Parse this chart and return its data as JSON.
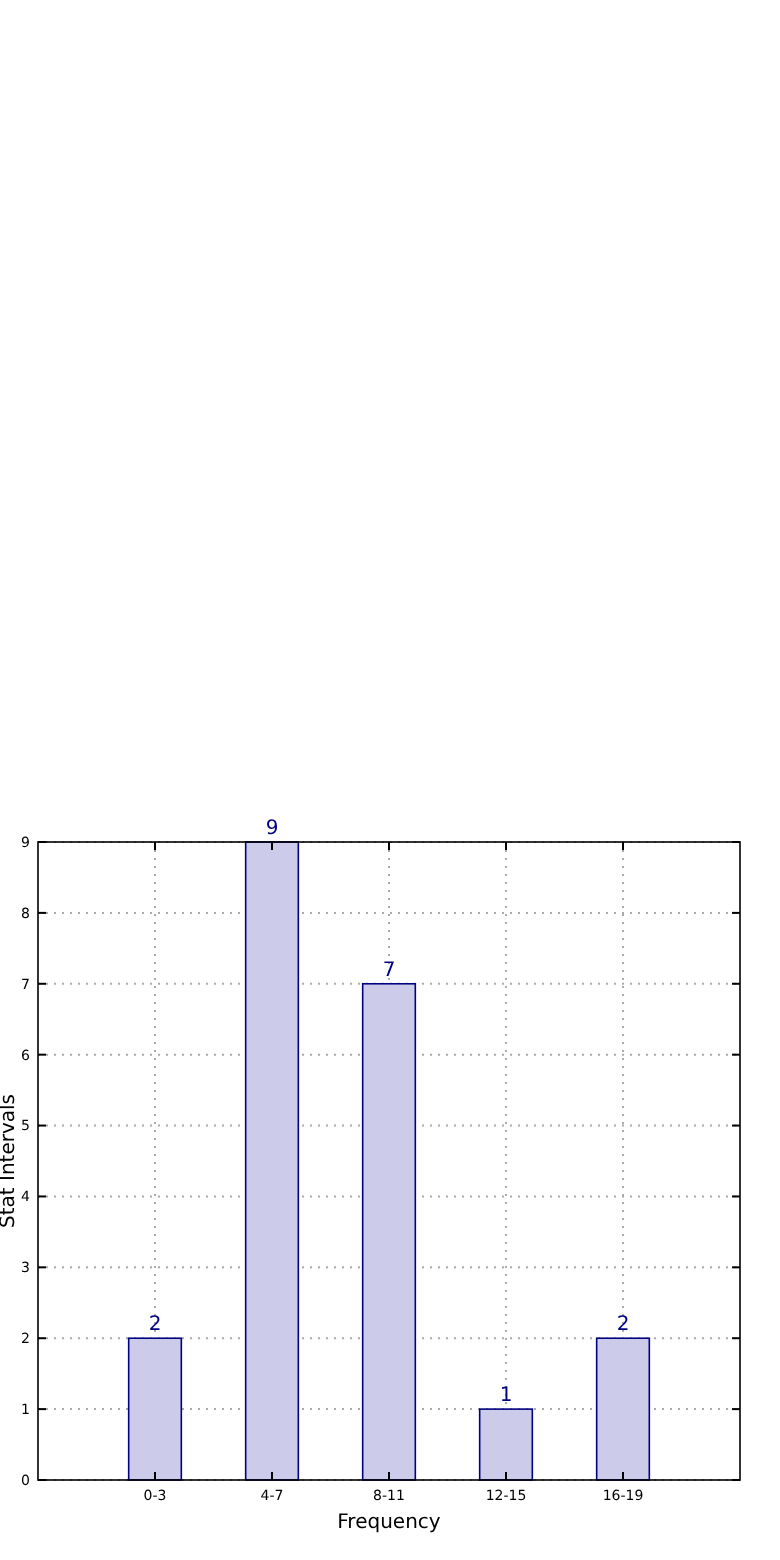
{
  "chart_data": {
    "type": "bar",
    "xlabel": "Frequency",
    "ylabel": "Stat Intervals",
    "categories": [
      "0-3",
      "4-7",
      "8-11",
      "12-15",
      "16-19"
    ],
    "values": [
      2,
      9,
      7,
      1,
      2
    ],
    "color": "#ccccea",
    "ylim": [
      0,
      9
    ],
    "yticks": [
      0,
      1,
      2,
      3,
      4,
      5,
      6,
      7,
      8,
      9
    ],
    "grid": true,
    "data_labels": true
  }
}
